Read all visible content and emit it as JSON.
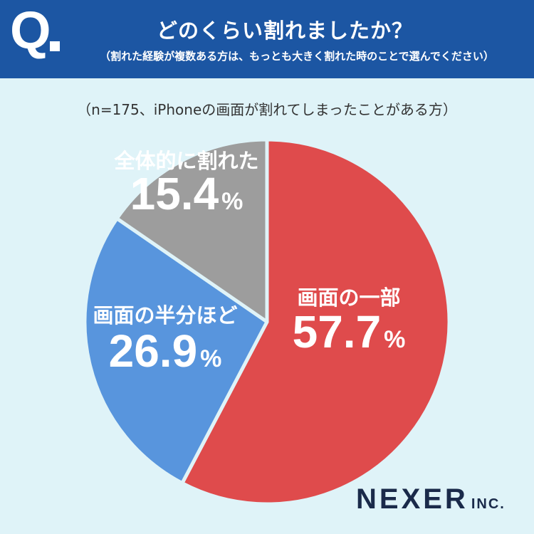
{
  "header": {
    "q_mark": "Q",
    "title": "どのくらい割れましたか？",
    "subtitle": "（割れた経験が複数ある方は、もっとも大きく割れた時のことで選んでください）"
  },
  "note": "（n=175、iPhoneの画面が割れてしまったことがある方）",
  "brand": {
    "name": "NEXER",
    "suffix": "INC."
  },
  "colors": {
    "header_bg": "#1c56a3",
    "background": "#dff3f8",
    "slice_1": "#df4b4c",
    "slice_2": "#5895dd",
    "slice_3": "#9d9d9d"
  },
  "chart_data": {
    "type": "pie",
    "slices": [
      {
        "label": "画面の一部",
        "value": 57.7,
        "display": "57.7",
        "unit": "%",
        "color": "#df4b4c"
      },
      {
        "label": "画面の半分ほど",
        "value": 26.9,
        "display": "26.9",
        "unit": "%",
        "color": "#5895dd"
      },
      {
        "label": "全体的に割れた",
        "value": 15.4,
        "display": "15.4",
        "unit": "%",
        "color": "#9d9d9d"
      }
    ]
  }
}
